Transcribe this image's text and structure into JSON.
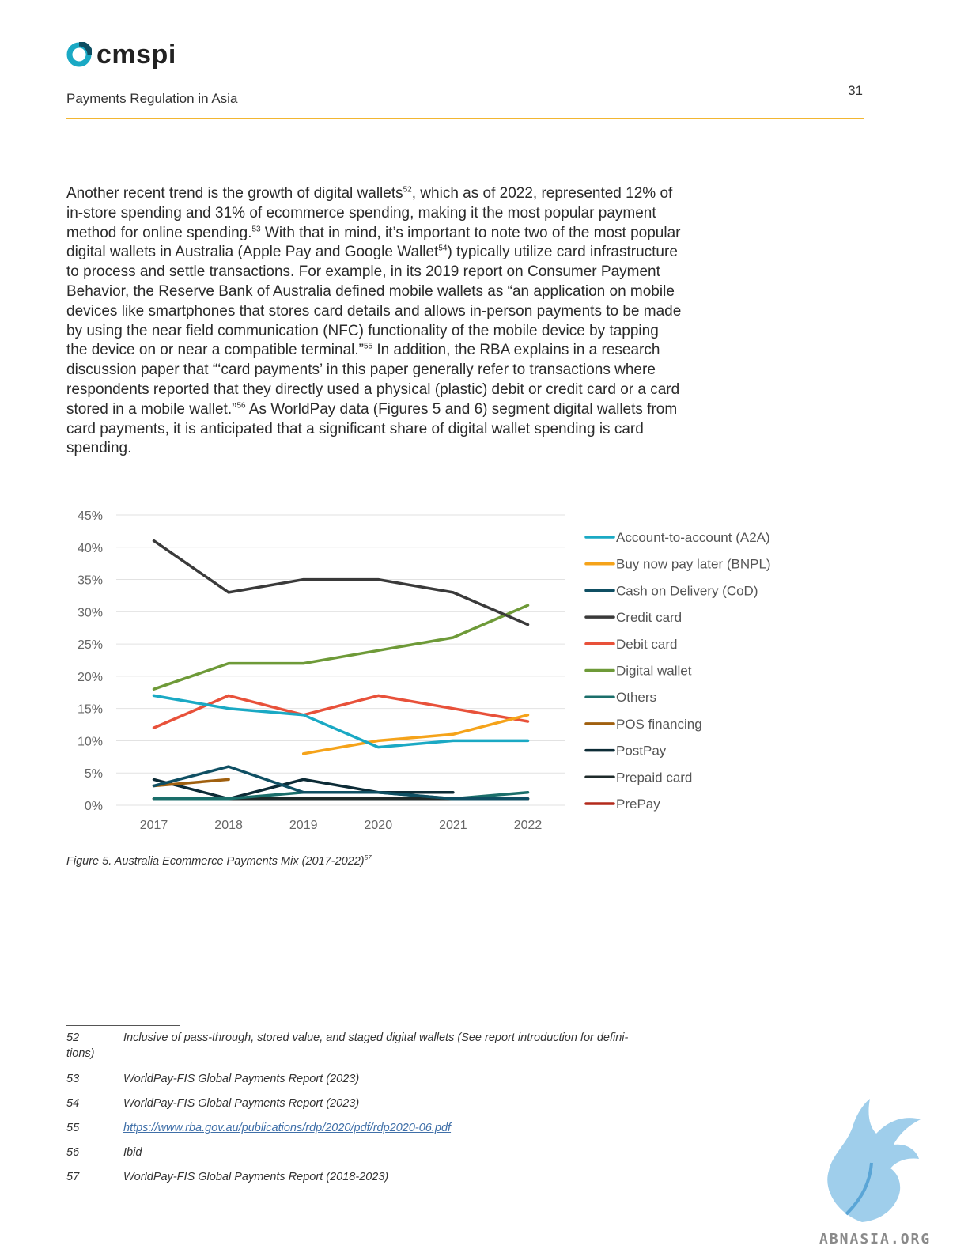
{
  "header": {
    "logo_text": "cmspi",
    "title": "Payments Regulation in Asia",
    "page_number": "31",
    "accent_color": "#f2b632"
  },
  "body": {
    "paragraph": [
      {
        "t": "Another recent trend is the growth of digital wallets"
      },
      {
        "sup": "52"
      },
      {
        "t": ", which as of 2022, represented 12% of in-store spending and 31% of ecommerce spending, making it the most popular payment method for online spending."
      },
      {
        "sup": "53"
      },
      {
        "t": " With that in mind, it’s important to note two of the most popular digital wallets in Australia (Apple Pay and Google Wallet"
      },
      {
        "sup": "54"
      },
      {
        "t": ") typically utilize card infrastructure to process and settle transactions. For example, in its 2019 report on Consumer Payment Behavior, the Reserve Bank of Australia defined mobile wallets as “an application on mobile devices like smartphones that stores card details and allows in-person payments to be made by using the near field communication (NFC) functionality of the mobile device by tapping the device on or near a compatible terminal.”"
      },
      {
        "sup": "55"
      },
      {
        "t": " In addition, the RBA explains in a research discussion paper that “‘card payments’ in this paper generally refer to transactions where respondents reported that they directly used a physical (plastic) debit or credit card or a card stored in a mobile wallet.”"
      },
      {
        "sup": "56"
      },
      {
        "t": " As WorldPay data (Figures 5 and 6) segment digital wallets from card payments, it is anticipated that a significant share of digital wallet spending is card spending."
      }
    ]
  },
  "chart_data": {
    "type": "line",
    "title": "",
    "xlabel": "",
    "ylabel": "",
    "x": [
      "2017",
      "2018",
      "2019",
      "2020",
      "2021",
      "2022"
    ],
    "ylim": [
      0,
      45
    ],
    "yticks": [
      "0%",
      "5%",
      "10%",
      "15%",
      "20%",
      "25%",
      "30%",
      "35%",
      "40%",
      "45%"
    ],
    "grid": true,
    "legend_position": "right",
    "series": [
      {
        "name": "Account-to-account (A2A)",
        "color": "#1aa9c4",
        "values": [
          17,
          15,
          14,
          9,
          10,
          10
        ]
      },
      {
        "name": "Buy now pay later (BNPL)",
        "color": "#f5a31a",
        "values": [
          null,
          null,
          8,
          10,
          11,
          14
        ]
      },
      {
        "name": "Cash on Delivery (CoD)",
        "color": "#0f4f63",
        "values": [
          3,
          6,
          2,
          2,
          1,
          1
        ]
      },
      {
        "name": "Credit card",
        "color": "#3a3a3a",
        "values": [
          41,
          33,
          35,
          35,
          33,
          28
        ]
      },
      {
        "name": "Debit card",
        "color": "#e8513a",
        "values": [
          12,
          17,
          14,
          17,
          15,
          13
        ]
      },
      {
        "name": "Digital wallet",
        "color": "#6e9a38",
        "values": [
          18,
          22,
          22,
          24,
          26,
          31
        ]
      },
      {
        "name": "Others",
        "color": "#1a6e6a",
        "values": [
          1,
          1,
          2,
          2,
          1,
          2
        ]
      },
      {
        "name": "POS financing",
        "color": "#a0600f",
        "values": [
          3,
          4,
          null,
          null,
          null,
          null
        ]
      },
      {
        "name": "PostPay",
        "color": "#0c2b36",
        "values": [
          4,
          1,
          4,
          2,
          2,
          null
        ]
      },
      {
        "name": "Prepaid card",
        "color": "#1e2a2a",
        "values": [
          1,
          1,
          1,
          1,
          1,
          1
        ]
      },
      {
        "name": "PrePay",
        "color": "#b32a1c",
        "values": [
          1,
          1,
          1,
          1,
          1,
          1
        ]
      }
    ]
  },
  "figure": {
    "caption": "Figure 5. Australia Ecommerce Payments Mix (2017-2022)",
    "caption_sup": "57"
  },
  "footnotes": [
    {
      "num": "52",
      "text": "Inclusive of pass-through, stored value, and staged digital wallets (See report introduction for defini-",
      "text2": "tions)"
    },
    {
      "num": "53",
      "text": "WorldPay-FIS Global Payments Report (2023)"
    },
    {
      "num": "54",
      "text": "WorldPay-FIS Global Payments Report (2023)"
    },
    {
      "num": "55",
      "text": "https://www.rba.gov.au/publications/rdp/2020/pdf/rdp2020-06.pdf"
    },
    {
      "num": "56",
      "text": "Ibid"
    },
    {
      "num": "57",
      "text": "WorldPay-FIS Global Payments Report (2018-2023)"
    }
  ],
  "watermark": {
    "text": "ABNASIA.ORG"
  }
}
